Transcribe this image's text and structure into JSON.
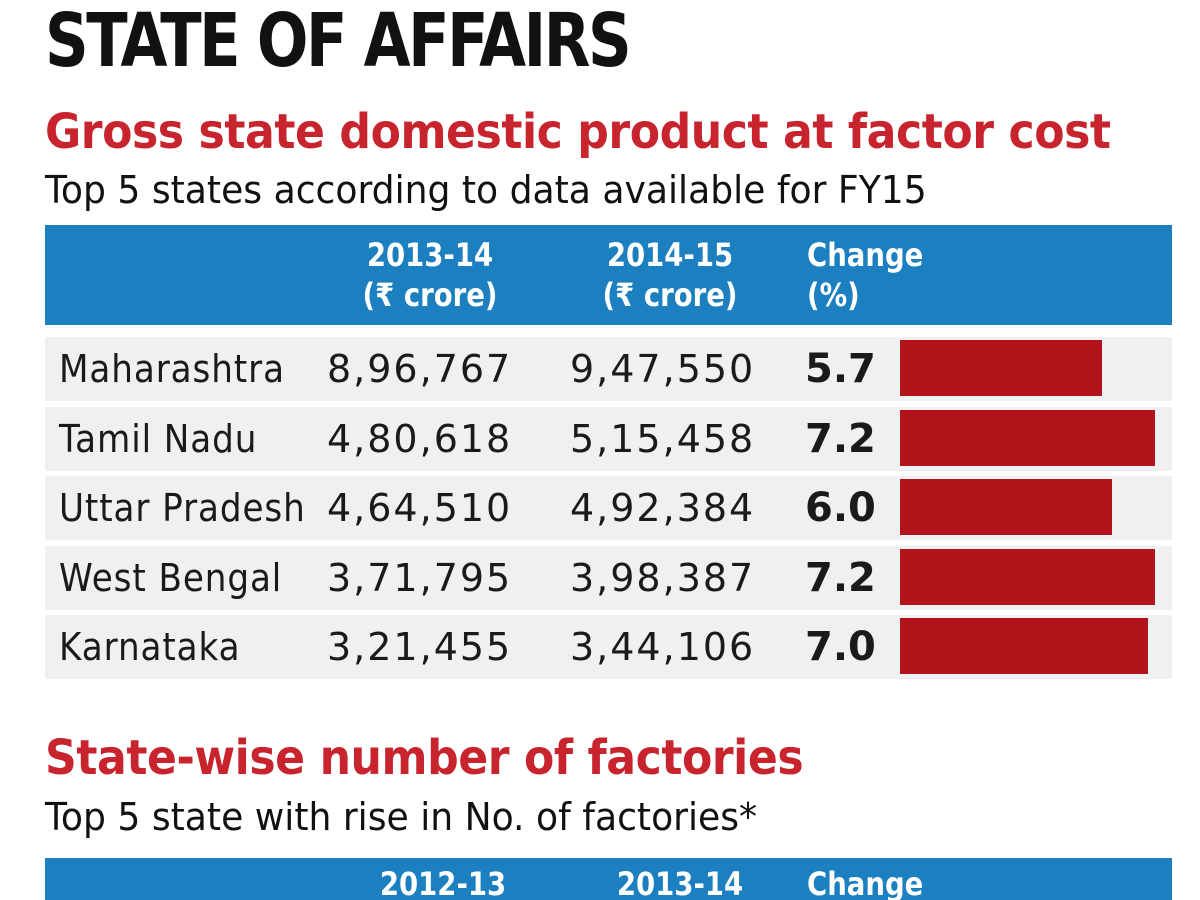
{
  "title": "STATE OF AFFAIRS",
  "colors": {
    "accent_red": "#c8242e",
    "bar_red": "#b3141c",
    "header_blue": "#1b7fc0",
    "row_grey": "#eef0f1"
  },
  "chart_data": [
    {
      "type": "table",
      "title": "Gross state domestic product at factor cost",
      "subtitle": "Top 5 states according to data available for FY15",
      "columns": [
        "",
        "2013-14\n(₹ crore)",
        "2014-15\n(₹ crore)",
        "Change\n(%)"
      ],
      "rows": [
        {
          "state": "Maharashtra",
          "v1": "8,96,767",
          "v2": "9,47,550",
          "change": 5.7,
          "change_label": "5.7"
        },
        {
          "state": "Tamil Nadu",
          "v1": "4,80,618",
          "v2": "5,15,458",
          "change": 7.2,
          "change_label": "7.2"
        },
        {
          "state": "Uttar Pradesh",
          "v1": "4,64,510",
          "v2": "4,92,384",
          "change": 6.0,
          "change_label": "6.0"
        },
        {
          "state": "West Bengal",
          "v1": "3,71,795",
          "v2": "3,98,387",
          "change": 7.2,
          "change_label": "7.2"
        },
        {
          "state": "Karnataka",
          "v1": "3,21,455",
          "v2": "3,44,106",
          "change": 7.0,
          "change_label": "7.0"
        }
      ],
      "bar_range": [
        0,
        7.2
      ]
    },
    {
      "type": "table",
      "title": "State-wise number of factories",
      "subtitle": "Top 5 state with rise in No. of factories*",
      "columns": [
        "",
        "2012-13",
        "2013-14",
        "Change"
      ]
    }
  ]
}
